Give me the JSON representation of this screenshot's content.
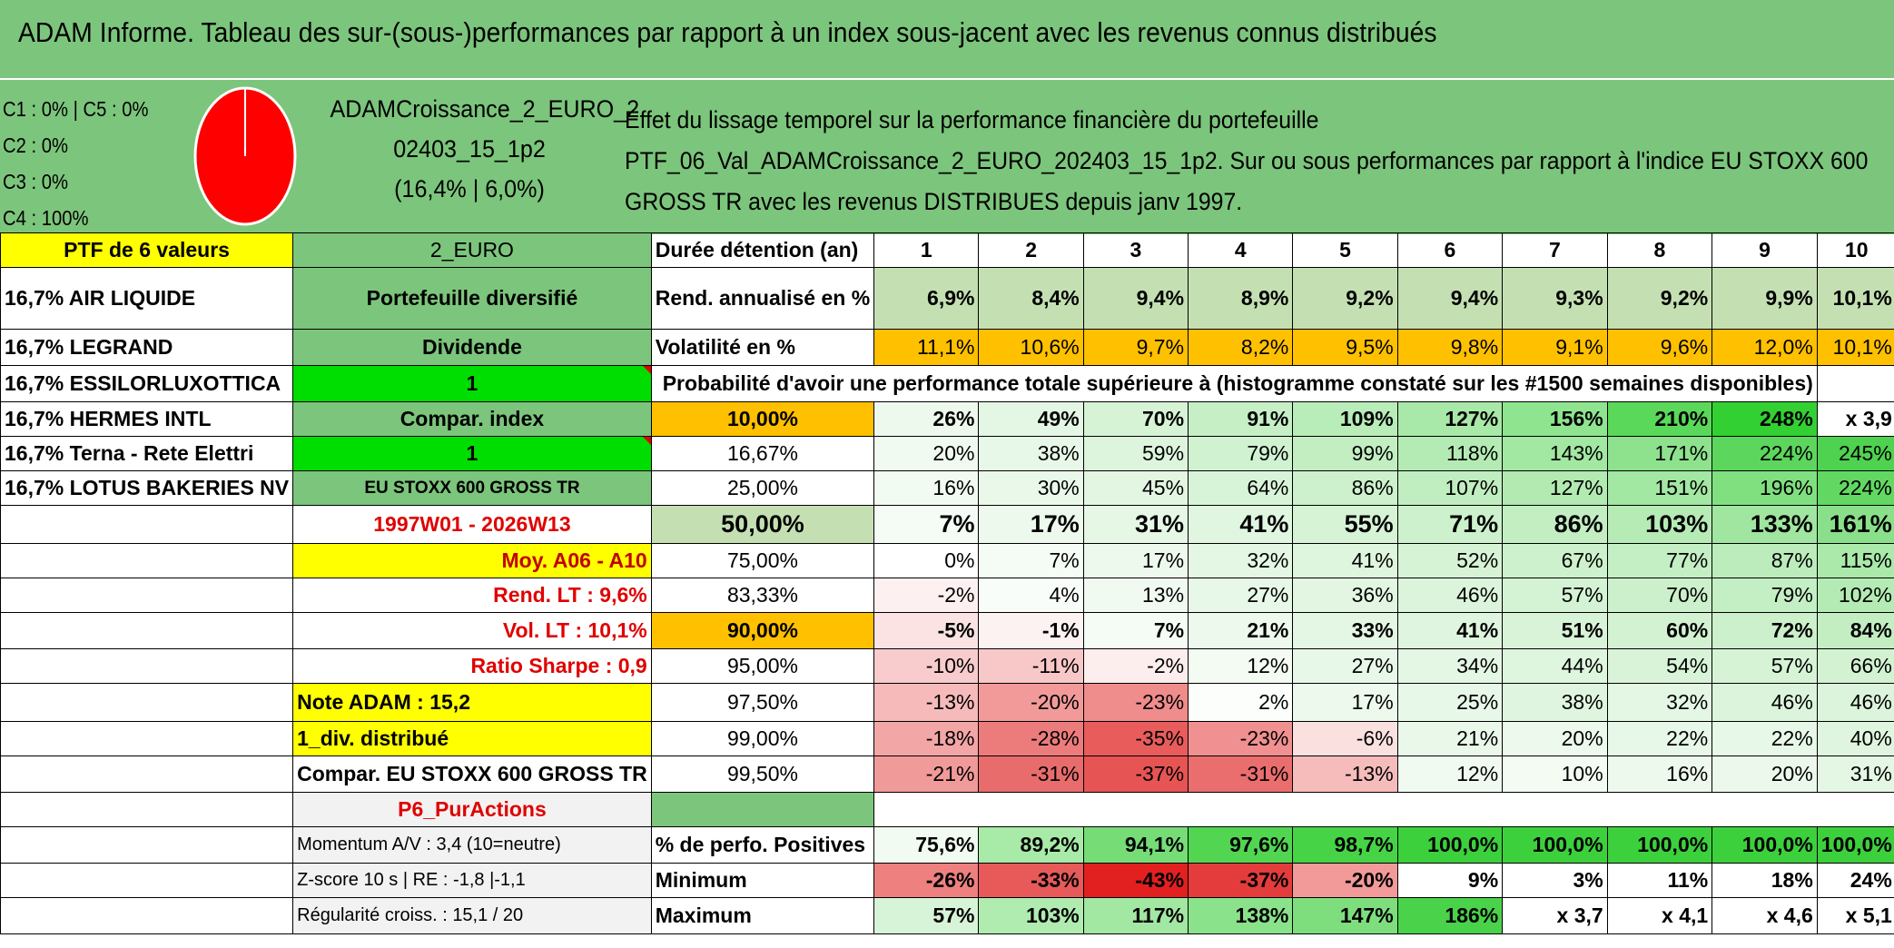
{
  "title": "ADAM Informe. Tableau des sur-(sous-)performances par rapport à un index sous-jacent avec les revenus connus distribués",
  "legend": {
    "line1": "C1 : 0% | C5 : 0%",
    "line2": "C2 : 0%",
    "line3": "C3 : 0%",
    "line4": "C4 : 100%"
  },
  "fund": {
    "name_line1": "ADAMCroissance_2_EURO_2",
    "name_line2": "02403_15_1p2",
    "stats": "(16,4% | 6,0%)"
  },
  "effect": {
    "line1": "Effet du lissage temporel sur la performance financière du portefeuille",
    "line2": "PTF_06_Val_ADAMCroissance_2_EURO_202403_15_1p2. Sur ou sous performances par rapport à l'indice EU STOXX 600",
    "line3": "GROSS TR avec les revenus DISTRIBUES depuis janv 1997."
  },
  "colors": {
    "banner": "#7cc57c",
    "yellow": "#ffff00",
    "orange": "#ffc000",
    "bright_green": "#00dd00",
    "pie_red": "#ff0000"
  },
  "rows": {
    "r1": {
      "a": "PTF de 6 valeurs",
      "b": "2_EURO",
      "c": "Durée détention (an)"
    },
    "years": [
      "1",
      "2",
      "3",
      "4",
      "5",
      "6",
      "7",
      "8",
      "9",
      "10"
    ],
    "r2": {
      "a": "16,7% AIR LIQUIDE",
      "b": "Portefeuille diversifié",
      "c": "Rend. annualisé en %",
      "v": [
        "6,9%",
        "8,4%",
        "9,4%",
        "8,9%",
        "9,2%",
        "9,4%",
        "9,3%",
        "9,2%",
        "9,9%",
        "10,1%"
      ]
    },
    "r3": {
      "a": "16,7% LEGRAND",
      "b": "Dividende",
      "c": "Volatilité en %",
      "v": [
        "11,1%",
        "10,6%",
        "9,7%",
        "8,2%",
        "9,5%",
        "9,8%",
        "9,1%",
        "9,6%",
        "12,0%",
        "10,1%"
      ]
    },
    "r4": {
      "a": "16,7% ESSILORLUXOTTICA",
      "b": "1",
      "c": "Probabilité d'avoir une performance totale supérieure à (histogramme constaté sur les #1500 semaines disponibles)"
    },
    "r5": {
      "a": "16,7% HERMES INTL",
      "b": "Compar. index",
      "c": "10,00%",
      "v": [
        "26%",
        "49%",
        "70%",
        "91%",
        "109%",
        "127%",
        "156%",
        "210%",
        "248%",
        "x 3,9"
      ]
    },
    "r6": {
      "a": "16,7% Terna - Rete Elettri",
      "b": "1",
      "c": "16,67%",
      "v": [
        "20%",
        "38%",
        "59%",
        "79%",
        "99%",
        "118%",
        "143%",
        "171%",
        "224%",
        "245%"
      ]
    },
    "r7": {
      "a": "16,7% LOTUS BAKERIES NV",
      "b": "EU STOXX 600 GROSS TR",
      "c": "25,00%",
      "v": [
        "16%",
        "30%",
        "45%",
        "64%",
        "86%",
        "107%",
        "127%",
        "151%",
        "196%",
        "224%"
      ]
    },
    "r8": {
      "a": "",
      "b": "1997W01 - 2026W13",
      "c": "50,00%",
      "v": [
        "7%",
        "17%",
        "31%",
        "41%",
        "55%",
        "71%",
        "86%",
        "103%",
        "133%",
        "161%"
      ]
    },
    "r9": {
      "a": "",
      "b": "Moy. A06 - A10",
      "c": "75,00%",
      "v": [
        "0%",
        "7%",
        "17%",
        "32%",
        "41%",
        "52%",
        "67%",
        "77%",
        "87%",
        "115%"
      ]
    },
    "r10": {
      "a": "",
      "b": "Rend. LT : 9,6%",
      "c": "83,33%",
      "v": [
        "-2%",
        "4%",
        "13%",
        "27%",
        "36%",
        "46%",
        "57%",
        "70%",
        "79%",
        "102%"
      ]
    },
    "r11": {
      "a": "",
      "b": "Vol. LT : 10,1%",
      "c": "90,00%",
      "v": [
        "-5%",
        "-1%",
        "7%",
        "21%",
        "33%",
        "41%",
        "51%",
        "60%",
        "72%",
        "84%"
      ]
    },
    "r12": {
      "a": "",
      "b": "Ratio Sharpe : 0,9",
      "c": "95,00%",
      "v": [
        "-10%",
        "-11%",
        "-2%",
        "12%",
        "27%",
        "34%",
        "44%",
        "54%",
        "57%",
        "66%"
      ]
    },
    "r13": {
      "a": "",
      "b": "Note ADAM : 15,2",
      "c": "97,50%",
      "v": [
        "-13%",
        "-20%",
        "-23%",
        "2%",
        "17%",
        "25%",
        "38%",
        "32%",
        "46%",
        "46%"
      ]
    },
    "r14": {
      "a": "",
      "b": "1_div. distribué",
      "c": "99,00%",
      "v": [
        "-18%",
        "-28%",
        "-35%",
        "-23%",
        "-6%",
        "21%",
        "20%",
        "22%",
        "22%",
        "40%"
      ]
    },
    "r15": {
      "a": "",
      "b": "Compar. EU STOXX 600 GROSS TR",
      "c": "99,50%",
      "v": [
        "-21%",
        "-31%",
        "-37%",
        "-31%",
        "-13%",
        "12%",
        "10%",
        "16%",
        "20%",
        "31%"
      ]
    },
    "r16": {
      "a": "",
      "b": "P6_PurActions",
      "c": ""
    },
    "r17": {
      "a": "",
      "b": "Momentum A/V : 3,4 (10=neutre)",
      "c": "% de perfo. Positives",
      "v": [
        "75,6%",
        "89,2%",
        "94,1%",
        "97,6%",
        "98,7%",
        "100,0%",
        "100,0%",
        "100,0%",
        "100,0%",
        "100,0%"
      ]
    },
    "r18": {
      "a": "",
      "b": "Z-score 10 s | RE : -1,8 |-1,1",
      "c": "Minimum",
      "v": [
        "-26%",
        "-33%",
        "-43%",
        "-37%",
        "-20%",
        "9%",
        "3%",
        "11%",
        "18%",
        "24%"
      ]
    },
    "r19": {
      "a": "",
      "b": "Régularité croiss. : 15,1 / 20",
      "c": "Maximum",
      "v": [
        "57%",
        "103%",
        "117%",
        "138%",
        "147%",
        "186%",
        "x 3,7",
        "x 4,1",
        "x 4,6",
        "x 5,1"
      ]
    }
  }
}
